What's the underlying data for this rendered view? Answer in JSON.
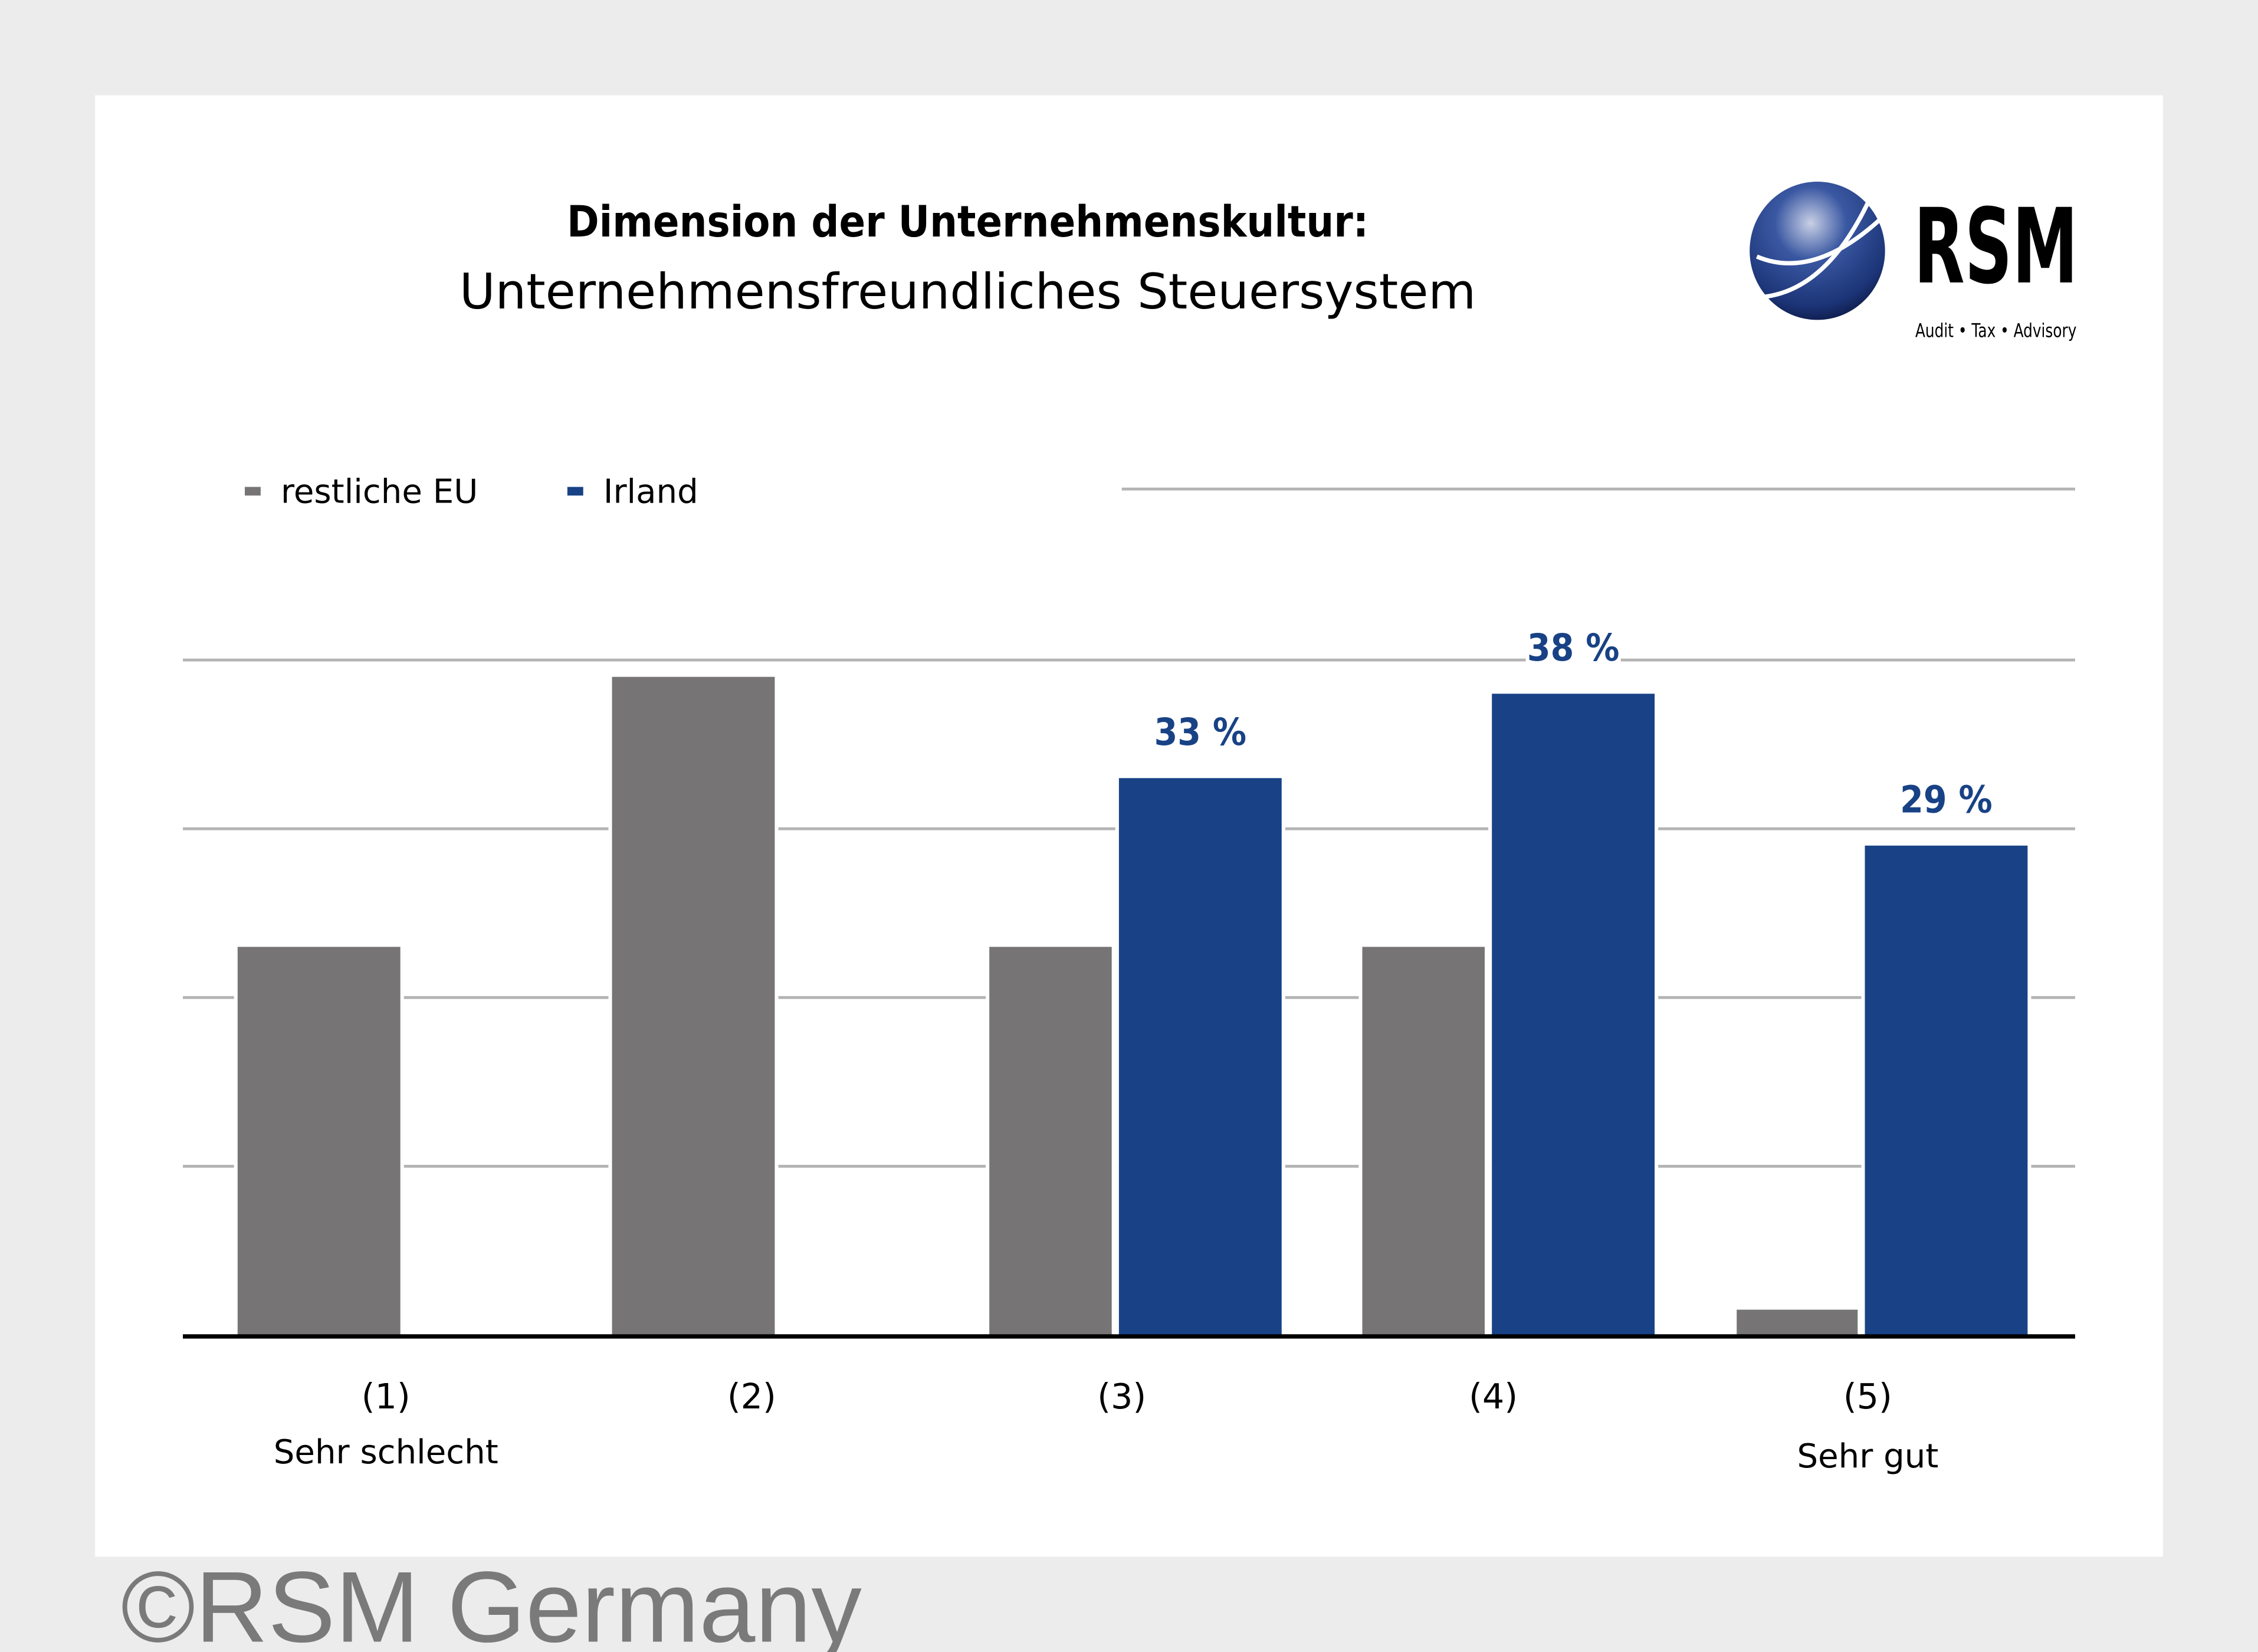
{
  "title": {
    "line1": "Dimension der Unternehmenskultur:",
    "line2": "Unternehmensfreundliches Steuersystem"
  },
  "logo": {
    "name": "RSM",
    "tagline": "Audit • Tax • Advisory"
  },
  "watermark": "©RSM Germany",
  "colors": {
    "eu": "#767475",
    "irland": "#184285",
    "grid": "#b4b4b4",
    "axis": "#000000",
    "background": "#ececec",
    "panel": "#ffffff"
  },
  "chart_data": {
    "type": "bar",
    "title": "Dimension der Unternehmenskultur: Unternehmensfreundliches Steuersystem",
    "categories": [
      "(1)",
      "(2)",
      "(3)",
      "(4)",
      "(5)"
    ],
    "category_sublabels": [
      "Sehr schlecht",
      "",
      "",
      "",
      "Sehr gut"
    ],
    "series": [
      {
        "name": "restliche EU",
        "values": [
          23,
          39,
          23,
          23,
          1.5
        ]
      },
      {
        "name": "Irland",
        "values": [
          0,
          0,
          33,
          38,
          29
        ],
        "labels": [
          "",
          "",
          "33 %",
          "38 %",
          "29 %"
        ]
      }
    ],
    "ylim": [
      0,
      40
    ],
    "gridlines": [
      10,
      20,
      30,
      40
    ],
    "legend": "top-left",
    "xlabel": "",
    "ylabel": ""
  }
}
